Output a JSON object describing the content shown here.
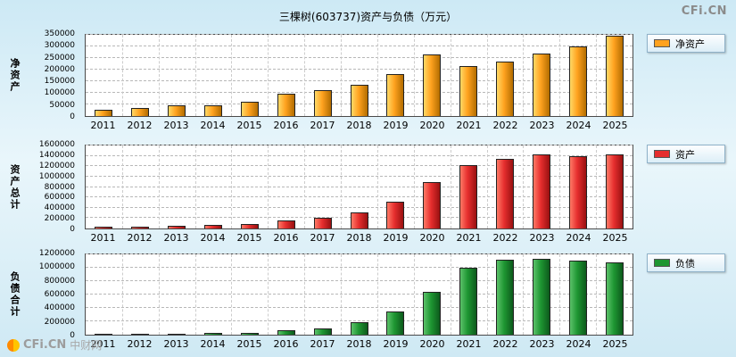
{
  "title": "三棵树(603737)资产与负债（万元）",
  "logo_text": "CFi.CN",
  "watermark": {
    "brand": "CFi.CN",
    "site": "中财网"
  },
  "colors": {
    "net_assets": "#FFA21F",
    "assets": "#E62E2E",
    "liabilities": "#1E9632"
  },
  "chart_data": [
    {
      "type": "bar",
      "name": "net-assets",
      "ylabel": "净资产",
      "legend_label": "净资产",
      "categories": [
        "2011",
        "2012",
        "2013",
        "2014",
        "2015",
        "2016",
        "2017",
        "2018",
        "2019",
        "2020",
        "2021",
        "2022",
        "2023",
        "2024",
        "2025"
      ],
      "values": [
        28000,
        35000,
        45000,
        47000,
        60000,
        95000,
        110000,
        135000,
        180000,
        265000,
        215000,
        235000,
        270000,
        300000,
        345000
      ],
      "ylim": [
        0,
        350000
      ],
      "ytick_step": 50000,
      "grid": true,
      "legend_position": "right",
      "bar_colors": {
        "light": "#FFD966",
        "main": "#FFA21F",
        "dark": "#B36D00"
      }
    },
    {
      "type": "bar",
      "name": "total-assets",
      "ylabel": "资产总计",
      "legend_label": "资产",
      "categories": [
        "2011",
        "2012",
        "2013",
        "2014",
        "2015",
        "2016",
        "2017",
        "2018",
        "2019",
        "2020",
        "2021",
        "2022",
        "2023",
        "2024",
        "2025"
      ],
      "values": [
        35000,
        42000,
        50000,
        70000,
        85000,
        160000,
        205000,
        310000,
        510000,
        900000,
        1220000,
        1350000,
        1430000,
        1400000,
        1420000
      ],
      "ylim": [
        0,
        1600000
      ],
      "ytick_step": 200000,
      "grid": true,
      "legend_position": "right",
      "bar_colors": {
        "light": "#FF7A66",
        "main": "#E62E2E",
        "dark": "#991111"
      }
    },
    {
      "type": "bar",
      "name": "total-liabilities",
      "ylabel": "负债合计",
      "legend_label": "负债",
      "categories": [
        "2011",
        "2012",
        "2013",
        "2014",
        "2015",
        "2016",
        "2017",
        "2018",
        "2019",
        "2020",
        "2021",
        "2022",
        "2023",
        "2024",
        "2025"
      ],
      "values": [
        12000,
        13000,
        15000,
        28000,
        30000,
        70000,
        95000,
        185000,
        350000,
        640000,
        1005000,
        1120000,
        1140000,
        1105000,
        1080000
      ],
      "ylim": [
        0,
        1200000
      ],
      "ytick_step": 200000,
      "grid": true,
      "legend_position": "right",
      "bar_colors": {
        "light": "#5CC26A",
        "main": "#1E9632",
        "dark": "#0D5A1C"
      }
    }
  ]
}
